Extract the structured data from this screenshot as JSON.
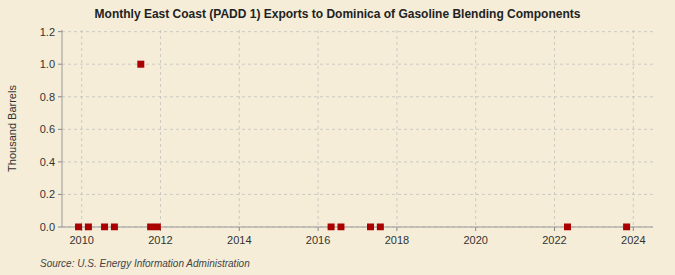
{
  "chart_data": {
    "type": "scatter",
    "title": "Monthly East Coast (PADD 1) Exports to Dominica of Gasoline Blending Components",
    "ylabel": "Thousand Barrels",
    "source": "Source: U.S. Energy Information Administration",
    "x": [
      2009.92,
      2010.17,
      2010.58,
      2010.83,
      2011.5,
      2011.75,
      2011.92,
      2016.33,
      2016.58,
      2017.33,
      2017.58,
      2022.33,
      2023.83
    ],
    "values": [
      0.0,
      0.0,
      0.0,
      0.0,
      1.0,
      0.0,
      0.0,
      0.0,
      0.0,
      0.0,
      0.0,
      0.0,
      0.0
    ],
    "color": "#aa0000",
    "marker": "square",
    "xlim": [
      2009.5,
      2024.5
    ],
    "ylim": [
      0.0,
      1.21
    ],
    "xticks": [
      2010,
      2012,
      2014,
      2016,
      2018,
      2020,
      2022,
      2024
    ],
    "yticks": [
      {
        "value": 0.0,
        "label": "0.0"
      },
      0.2,
      0.4,
      0.6,
      0.8,
      {
        "value": 1.0,
        "label": "1.0"
      },
      1.2
    ],
    "grid": true
  }
}
